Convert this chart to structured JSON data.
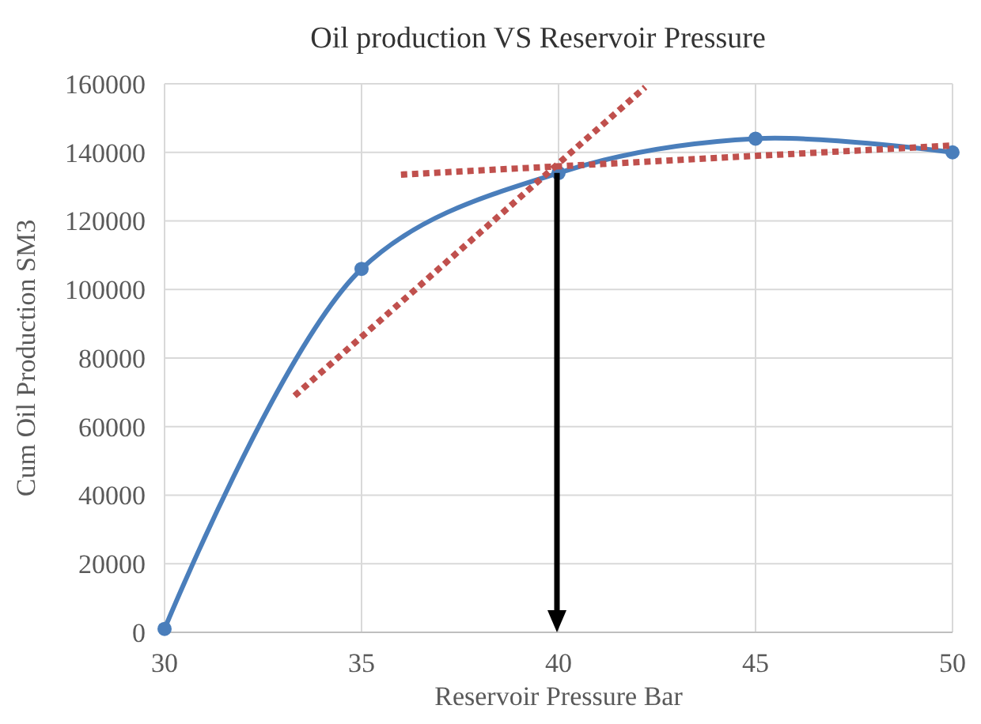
{
  "chart_data": {
    "type": "line",
    "title": "Oil production VS  Reservoir Pressure",
    "xlabel": "Reservoir Pressure Bar",
    "ylabel": "Cum  Oil Production  SM3",
    "series": [
      {
        "color": "#4a7ebb",
        "marker": "circle",
        "line_style": "solid",
        "x": [
          30,
          35,
          40,
          45,
          50
        ],
        "values": [
          1000,
          106000,
          134000,
          144000,
          140000
        ]
      },
      {
        "color": "#c0504d",
        "marker": "none",
        "line_style": "dotted",
        "x": [
          33.3,
          42.2
        ],
        "values": [
          69000,
          159000
        ]
      },
      {
        "color": "#c0504d",
        "marker": "none",
        "line_style": "dotted",
        "x": [
          36,
          50
        ],
        "values": [
          133500,
          142000
        ]
      }
    ],
    "ref_lines": [
      {
        "axis": "x",
        "value": 40,
        "color": "#000000"
      }
    ],
    "xlim": [
      30,
      50
    ],
    "xticks": [
      30,
      35,
      40,
      45,
      50
    ],
    "ylim": [
      0,
      160000
    ],
    "yticks": [
      0,
      20000,
      40000,
      60000,
      80000,
      100000,
      120000,
      140000,
      160000
    ],
    "grid": true
  }
}
